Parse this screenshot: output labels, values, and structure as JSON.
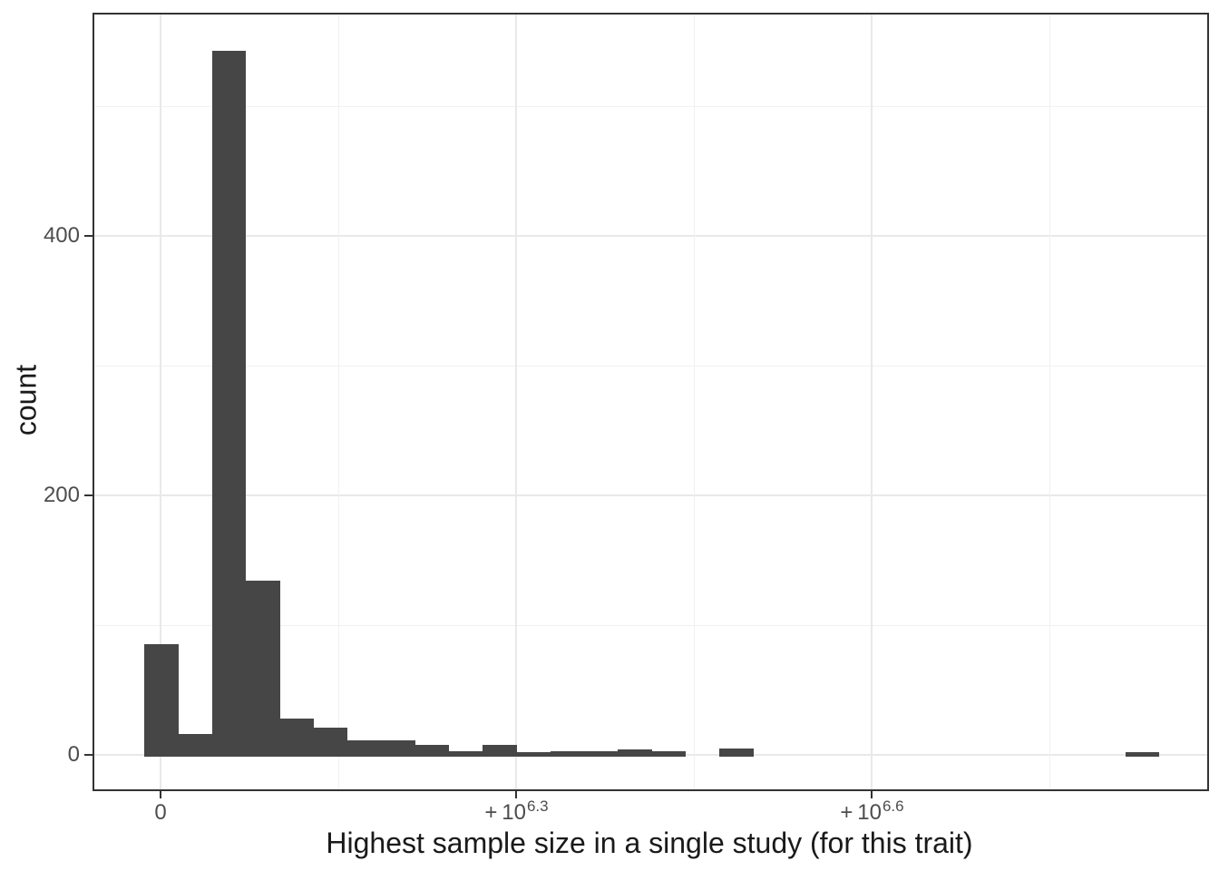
{
  "chart_data": {
    "type": "histogram",
    "title": "",
    "xlabel": "Highest sample size in a single study (for this trait)",
    "ylabel": "count",
    "x_scale": "pseudo-log10 (signed log), labeled in powers of 10",
    "x_ticks": [
      {
        "text": "0",
        "sup": null
      },
      {
        "text": "+ 10",
        "sup": "6.3"
      },
      {
        "text": "+ 10",
        "sup": "6.6"
      }
    ],
    "y_ticks": [
      0,
      200,
      400
    ],
    "y_minor_ticks": [
      100,
      300,
      500
    ],
    "ylim": [
      -27,
      571
    ],
    "grid": true,
    "legend": false,
    "n_bins": 30,
    "bin_counts": [
      85,
      16,
      543,
      134,
      28,
      21,
      11,
      11,
      8,
      3,
      8,
      2,
      3,
      3,
      4,
      3,
      0,
      5,
      0,
      0,
      0,
      0,
      0,
      0,
      0,
      0,
      0,
      0,
      0,
      2
    ],
    "first_bin_left_u": -0.0459,
    "bin_width_u": 0.09515,
    "colors": {
      "bar": "#464646",
      "panel_border": "#333333",
      "grid_major": "#e9e9e9",
      "grid_minor": "#f1f1f1",
      "tick": "#333333",
      "axis_text": "#4d4d4d",
      "axis_title": "#1a1a1a",
      "background": "#ffffff"
    }
  }
}
